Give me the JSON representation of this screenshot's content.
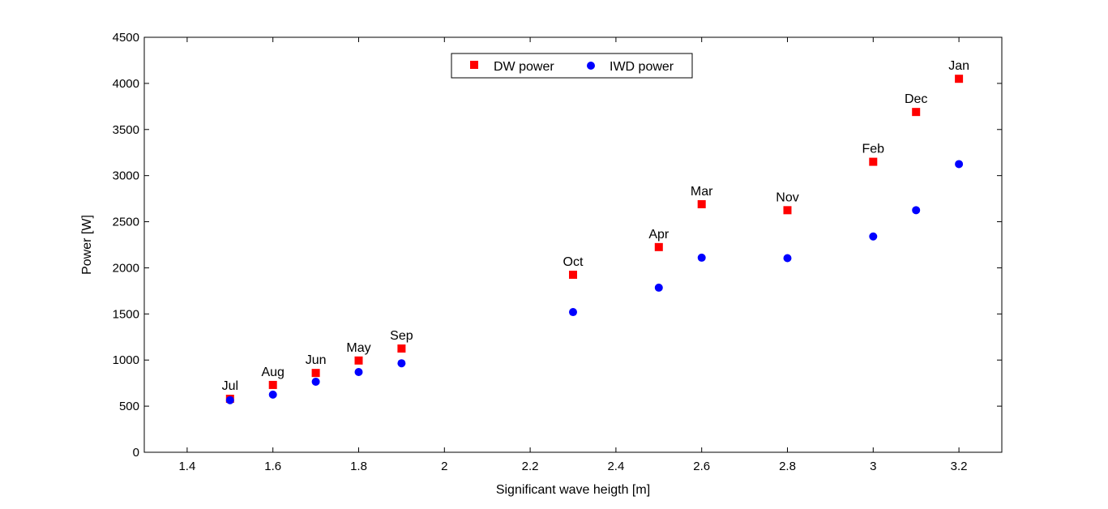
{
  "chart_data": {
    "type": "scatter",
    "title": "",
    "xlabel": "Significant wave heigth [m]",
    "ylabel": "Power [W]",
    "xlim": [
      1.3,
      3.3
    ],
    "ylim": [
      0,
      4500
    ],
    "xticks": [
      1.4,
      1.6,
      1.8,
      2,
      2.2,
      2.4,
      2.6,
      2.8,
      3,
      3.2
    ],
    "xtick_labels": [
      "1.4",
      "1.6",
      "1.8",
      "2",
      "2.2",
      "2.4",
      "2.6",
      "2.8",
      "3",
      "3.2"
    ],
    "yticks": [
      0,
      500,
      1000,
      1500,
      2000,
      2500,
      3000,
      3500,
      4000,
      4500
    ],
    "ytick_labels": [
      "0",
      "500",
      "1000",
      "1500",
      "2000",
      "2500",
      "3000",
      "3500",
      "4000",
      "4500"
    ],
    "grid": false,
    "legend_position": "top-center",
    "series": [
      {
        "name": "DW power",
        "color": "#ff0000",
        "marker": "square",
        "points": [
          {
            "x": 1.5,
            "y": 580,
            "label": "Jul"
          },
          {
            "x": 1.6,
            "y": 730,
            "label": "Aug"
          },
          {
            "x": 1.7,
            "y": 860,
            "label": "Jun"
          },
          {
            "x": 1.8,
            "y": 995,
            "label": "May"
          },
          {
            "x": 1.9,
            "y": 1125,
            "label": "Sep"
          },
          {
            "x": 2.3,
            "y": 1925,
            "label": "Oct"
          },
          {
            "x": 2.5,
            "y": 2225,
            "label": "Apr"
          },
          {
            "x": 2.6,
            "y": 2690,
            "label": "Mar"
          },
          {
            "x": 2.8,
            "y": 2625,
            "label": "Nov"
          },
          {
            "x": 3.0,
            "y": 3150,
            "label": "Feb"
          },
          {
            "x": 3.1,
            "y": 3690,
            "label": "Dec"
          },
          {
            "x": 3.2,
            "y": 4050,
            "label": "Jan"
          }
        ]
      },
      {
        "name": "IWD power",
        "color": "#0000ff",
        "marker": "circle",
        "points": [
          {
            "x": 1.5,
            "y": 565
          },
          {
            "x": 1.6,
            "y": 625
          },
          {
            "x": 1.7,
            "y": 765
          },
          {
            "x": 1.8,
            "y": 870
          },
          {
            "x": 1.9,
            "y": 965
          },
          {
            "x": 2.3,
            "y": 1520
          },
          {
            "x": 2.5,
            "y": 1785
          },
          {
            "x": 2.6,
            "y": 2110
          },
          {
            "x": 2.8,
            "y": 2105
          },
          {
            "x": 3.0,
            "y": 2340
          },
          {
            "x": 3.1,
            "y": 2625
          },
          {
            "x": 3.2,
            "y": 3125
          }
        ]
      }
    ]
  }
}
